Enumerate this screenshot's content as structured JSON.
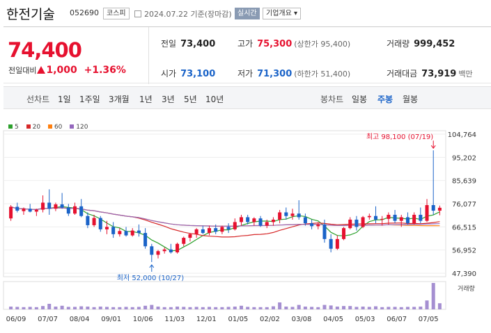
{
  "stock": {
    "name": "한전기술",
    "code": "052690",
    "market": "코스피",
    "date": "2024.07.22 기준(장마감)",
    "live_badge": "실시간",
    "company_info": "기업개요 ▾"
  },
  "summary": {
    "price": "74,400",
    "change_label": "전일대비",
    "change_amount": "1,000",
    "change_pct": "+1.36%",
    "prev_close_label": "전일",
    "prev_close": "73,400",
    "high_label": "고가",
    "high": "75,300",
    "upper_limit": "(상한가 95,400)",
    "volume_label": "거래량",
    "volume": "999,452",
    "open_label": "시가",
    "open": "73,100",
    "low_label": "저가",
    "low": "71,300",
    "lower_limit": "(하한가 51,400)",
    "amount_label": "거래대금",
    "amount": "73,919",
    "amount_unit": "백만"
  },
  "toolbar": {
    "line_label": "선차트",
    "line_periods": [
      "1일",
      "1주일",
      "3개월",
      "1년",
      "3년",
      "5년",
      "10년"
    ],
    "candle_label": "봉차트",
    "candle_periods": [
      "일봉",
      "주봉",
      "월봉"
    ],
    "active_candle": "주봉"
  },
  "legend": [
    {
      "label": "5",
      "color": "#2ca02c"
    },
    {
      "label": "20",
      "color": "#d62728"
    },
    {
      "label": "60",
      "color": "#ff7f0e"
    },
    {
      "label": "120",
      "color": "#9467bd"
    }
  ],
  "volume_label": "거래량",
  "chart_data": {
    "type": "candlestick",
    "up_color": "#e6112f",
    "down_color": "#1a63c8",
    "y_ticks": [
      "104,764",
      "95,202",
      "85,639",
      "76,077",
      "66,515",
      "56,952",
      "47,390"
    ],
    "ylim": [
      47390,
      104764
    ],
    "x_ticks": [
      "06/09",
      "07/07",
      "08/04",
      "09/01",
      "10/06",
      "11/03",
      "12/01",
      "01/05",
      "02/02",
      "03/08",
      "04/05",
      "05/03",
      "06/07",
      "07/05"
    ],
    "max_annotation": "최고 98,100 (07/19)",
    "min_annotation": "최저 52,000 (10/27)",
    "candles": [
      [
        70000,
        75500,
        69000,
        74800
      ],
      [
        74800,
        76500,
        72500,
        73200
      ],
      [
        73000,
        74500,
        71500,
        74000
      ],
      [
        74000,
        76000,
        72500,
        72800
      ],
      [
        72800,
        74000,
        71000,
        73600
      ],
      [
        73600,
        79500,
        72500,
        76500
      ],
      [
        76500,
        82000,
        71500,
        74000
      ],
      [
        74000,
        76500,
        73000,
        75800
      ],
      [
        75800,
        80500,
        74000,
        74500
      ],
      [
        74500,
        76000,
        71000,
        72000
      ],
      [
        72000,
        76500,
        71500,
        75000
      ],
      [
        75000,
        78000,
        70500,
        71000
      ],
      [
        71000,
        72500,
        66000,
        67200
      ],
      [
        67200,
        71500,
        66500,
        70200
      ],
      [
        70200,
        71000,
        64500,
        65500
      ],
      [
        65500,
        69000,
        63500,
        66500
      ],
      [
        66500,
        68500,
        62000,
        63500
      ],
      [
        63500,
        66000,
        62500,
        64800
      ],
      [
        64800,
        66500,
        62500,
        63000
      ],
      [
        63000,
        66000,
        62500,
        65000
      ],
      [
        65000,
        67500,
        62500,
        64000
      ],
      [
        64000,
        66000,
        57500,
        58500
      ],
      [
        58500,
        59500,
        52000,
        55000
      ],
      [
        55000,
        57000,
        53500,
        56500
      ],
      [
        56500,
        58000,
        55500,
        57200
      ],
      [
        57200,
        59500,
        55500,
        56000
      ],
      [
        56000,
        60000,
        55500,
        59500
      ],
      [
        59500,
        62500,
        58500,
        62000
      ],
      [
        62000,
        64000,
        60500,
        63500
      ],
      [
        63500,
        66000,
        62000,
        65500
      ],
      [
        65500,
        67000,
        63500,
        64000
      ],
      [
        64000,
        67000,
        63000,
        66000
      ],
      [
        66000,
        67500,
        63500,
        64500
      ],
      [
        64500,
        67000,
        63500,
        66500
      ],
      [
        66500,
        68000,
        64000,
        65500
      ],
      [
        65500,
        70000,
        65000,
        68500
      ],
      [
        68500,
        71500,
        67000,
        70500
      ],
      [
        70500,
        71500,
        67500,
        68500
      ],
      [
        68500,
        70500,
        67000,
        70000
      ],
      [
        70000,
        71000,
        66500,
        67000
      ],
      [
        67000,
        69500,
        66000,
        68500
      ],
      [
        68500,
        70500,
        67000,
        69500
      ],
      [
        69500,
        73500,
        68000,
        72500
      ],
      [
        72500,
        74500,
        69500,
        71000
      ],
      [
        71000,
        74000,
        69500,
        72000
      ],
      [
        72000,
        77500,
        69500,
        70500
      ],
      [
        70500,
        72000,
        67000,
        68000
      ],
      [
        68000,
        69500,
        65500,
        66800
      ],
      [
        66800,
        68500,
        65500,
        67500
      ],
      [
        67500,
        69500,
        60000,
        61500
      ],
      [
        61500,
        63500,
        56000,
        57500
      ],
      [
        57500,
        63000,
        57000,
        61500
      ],
      [
        61500,
        66500,
        61000,
        66000
      ],
      [
        66000,
        70500,
        65500,
        69500
      ],
      [
        69500,
        71000,
        65000,
        66500
      ],
      [
        66500,
        71000,
        66000,
        70500
      ],
      [
        70500,
        72000,
        69500,
        71000
      ],
      [
        71000,
        75000,
        68000,
        69500
      ],
      [
        69500,
        71000,
        67000,
        69800
      ],
      [
        69800,
        72500,
        67500,
        71500
      ],
      [
        71500,
        73500,
        68000,
        69000
      ],
      [
        69000,
        71500,
        66500,
        70500
      ],
      [
        70500,
        72500,
        67500,
        68000
      ],
      [
        68000,
        72500,
        67500,
        71500
      ],
      [
        71500,
        74500,
        68000,
        69000
      ],
      [
        69000,
        78000,
        68500,
        75500
      ],
      [
        75500,
        98100,
        71500,
        73200
      ],
      [
        73200,
        75300,
        71300,
        74400
      ]
    ],
    "volumes": [
      1.0,
      0.9,
      0.8,
      0.9,
      0.8,
      1.2,
      2.0,
      1.0,
      1.3,
      0.9,
      0.9,
      1.1,
      1.0,
      0.8,
      1.0,
      0.9,
      0.8,
      0.8,
      0.9,
      0.8,
      0.9,
      1.3,
      1.6,
      1.0,
      0.8,
      0.8,
      1.0,
      0.9,
      0.8,
      0.9,
      0.8,
      0.9,
      0.8,
      0.8,
      0.9,
      1.0,
      1.3,
      0.9,
      0.8,
      0.8,
      0.8,
      1.1,
      2.5,
      1.0,
      0.9,
      1.6,
      1.0,
      0.9,
      0.8,
      1.6,
      1.4,
      1.0,
      1.2,
      1.2,
      0.9,
      1.0,
      0.9,
      1.1,
      0.8,
      0.9,
      0.9,
      0.8,
      0.9,
      0.9,
      1.0,
      3.2,
      9.5,
      2.2
    ]
  }
}
